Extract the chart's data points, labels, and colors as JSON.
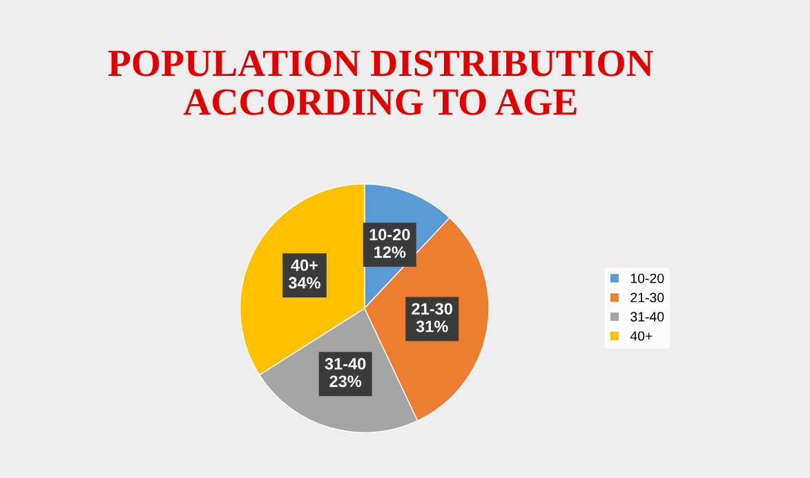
{
  "chart_data": {
    "type": "pie",
    "title": "POPULATION DISTRIBUTION\nACCORDING TO AGE",
    "categories": [
      "10-20",
      "21-30",
      "31-40",
      "40+"
    ],
    "values": [
      12,
      31,
      23,
      34
    ],
    "colors": [
      "#5b9bd5",
      "#ed7d31",
      "#a5a5a5",
      "#ffc000"
    ],
    "value_labels": [
      "12%",
      "31%",
      "23%",
      "34%"
    ],
    "legend": "right"
  }
}
